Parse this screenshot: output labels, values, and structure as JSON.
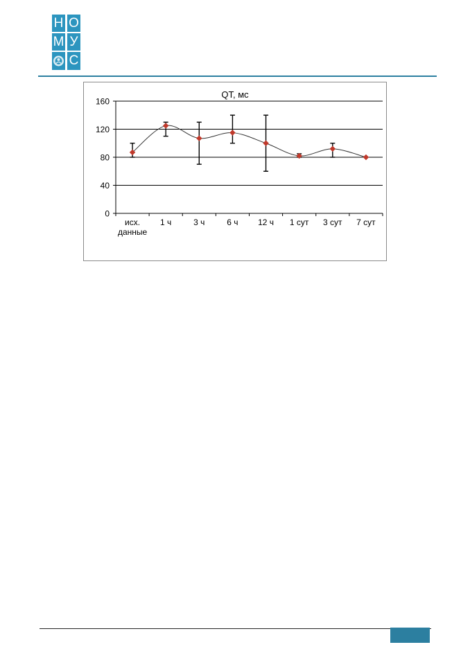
{
  "logo": {
    "letters": [
      "Н",
      "О",
      "М",
      "У",
      "С"
    ],
    "color": "#2c95bf"
  },
  "colors": {
    "header_rule": "#2c7fa0",
    "marker": "#c0392b",
    "line": "#333333",
    "footer_box": "#2c7fa0"
  },
  "chart_data": {
    "type": "line",
    "title": "QT, мс",
    "categories": [
      "исх.\nданные",
      "1 ч",
      "3 ч",
      "6 ч",
      "12 ч",
      "1 сут",
      "3 сут",
      "7 сут"
    ],
    "series": [
      {
        "values": [
          87,
          125,
          107,
          115,
          100,
          82,
          92,
          80
        ],
        "error_low": [
          80,
          110,
          70,
          100,
          60,
          80,
          80,
          80
        ],
        "error_high": [
          100,
          130,
          130,
          140,
          140,
          85,
          100,
          80
        ]
      }
    ],
    "ylim": [
      0,
      160
    ],
    "yticks": [
      0,
      40,
      80,
      120,
      160
    ],
    "grid": true,
    "smooth": true,
    "marker": "diamond"
  }
}
